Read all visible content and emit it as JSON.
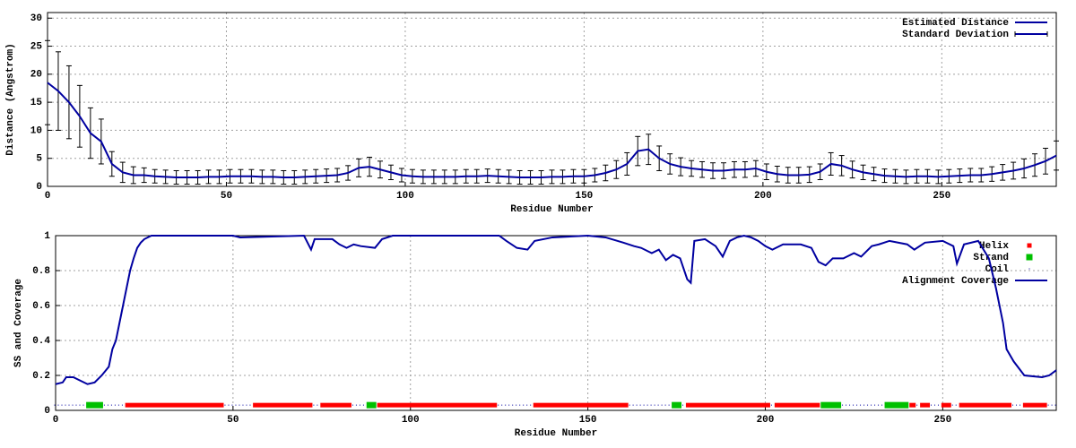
{
  "chart_data": [
    {
      "type": "errorbar-line",
      "xlabel": "Residue Number",
      "ylabel": "Distance (Angstrom)",
      "x": [
        0,
        3,
        6,
        9,
        12,
        15,
        18,
        21,
        24,
        27,
        30,
        33,
        36,
        39,
        42,
        45,
        48,
        51,
        54,
        57,
        60,
        63,
        66,
        69,
        72,
        75,
        78,
        81,
        84,
        87,
        90,
        93,
        96,
        99,
        102,
        105,
        108,
        111,
        114,
        117,
        120,
        123,
        126,
        129,
        132,
        135,
        138,
        141,
        144,
        147,
        150,
        153,
        156,
        159,
        162,
        165,
        168,
        171,
        174,
        177,
        180,
        183,
        186,
        189,
        192,
        195,
        198,
        201,
        204,
        207,
        210,
        213,
        216,
        219,
        222,
        225,
        228,
        231,
        234,
        237,
        240,
        243,
        246,
        249,
        252,
        255,
        258,
        261,
        264,
        267,
        270,
        273,
        276,
        279,
        282
      ],
      "series": [
        {
          "name": "Estimated Distance",
          "color": "#0000a0",
          "values": [
            18.5,
            17,
            15,
            12.5,
            9.5,
            8,
            4,
            2.5,
            2,
            2,
            1.8,
            1.7,
            1.6,
            1.6,
            1.6,
            1.7,
            1.7,
            1.8,
            1.8,
            1.8,
            1.7,
            1.7,
            1.6,
            1.6,
            1.7,
            1.8,
            1.9,
            2,
            2.4,
            3.3,
            3.5,
            3,
            2.5,
            2,
            1.8,
            1.7,
            1.7,
            1.7,
            1.7,
            1.8,
            1.8,
            1.9,
            1.8,
            1.7,
            1.6,
            1.6,
            1.6,
            1.7,
            1.7,
            1.8,
            1.8,
            2,
            2.4,
            3,
            4,
            6.3,
            6.6,
            5,
            4,
            3.5,
            3.2,
            3,
            2.8,
            2.8,
            3,
            3,
            3.2,
            2.6,
            2.2,
            2,
            2,
            2.1,
            2.6,
            4,
            3.7,
            3,
            2.5,
            2.2,
            1.9,
            1.8,
            1.7,
            1.8,
            1.8,
            1.7,
            1.8,
            1.9,
            2,
            2,
            2.2,
            2.5,
            2.8,
            3.2,
            3.8,
            4.5,
            5.5
          ]
        },
        {
          "name": "Standard Deviation",
          "color": "#000000",
          "values": [
            7.5,
            7,
            6.5,
            5.5,
            4.5,
            4,
            2.2,
            1.8,
            1.5,
            1.3,
            1.2,
            1.2,
            1.2,
            1.2,
            1.2,
            1.2,
            1.2,
            1.2,
            1.2,
            1.2,
            1.2,
            1.2,
            1.2,
            1.2,
            1.2,
            1.2,
            1.2,
            1.2,
            1.3,
            1.6,
            1.7,
            1.5,
            1.3,
            1.2,
            1.2,
            1.2,
            1.2,
            1.2,
            1.2,
            1.2,
            1.2,
            1.2,
            1.2,
            1.2,
            1.2,
            1.2,
            1.2,
            1.2,
            1.2,
            1.2,
            1.2,
            1.2,
            1.4,
            1.6,
            2,
            2.6,
            2.7,
            2.2,
            1.8,
            1.6,
            1.4,
            1.4,
            1.4,
            1.4,
            1.4,
            1.4,
            1.4,
            1.4,
            1.4,
            1.4,
            1.4,
            1.4,
            1.4,
            2,
            1.8,
            1.5,
            1.3,
            1.2,
            1.2,
            1.2,
            1.2,
            1.2,
            1.2,
            1.2,
            1.2,
            1.2,
            1.2,
            1.2,
            1.3,
            1.4,
            1.5,
            1.7,
            2,
            2.3,
            2.6
          ]
        }
      ],
      "xlim": [
        0,
        282
      ],
      "ylim": [
        0,
        31
      ],
      "xticks": [
        0,
        50,
        100,
        150,
        200,
        250
      ],
      "yticks": [
        0,
        5,
        10,
        15,
        20,
        25,
        30
      ],
      "grid": true,
      "legend": "upper right"
    },
    {
      "type": "coverage",
      "xlabel": "Residue Number",
      "ylabel": "SS and Coverage",
      "series": [
        {
          "name": "Helix",
          "color": "#ff0000",
          "y": 0.03,
          "segments": [
            [
              20,
              47
            ],
            [
              56,
              72
            ],
            [
              75,
              83
            ],
            [
              91,
              124
            ],
            [
              135,
              161
            ],
            [
              178,
              201
            ],
            [
              203,
              215
            ],
            [
              241,
              242
            ],
            [
              244,
              246
            ],
            [
              250,
              252
            ],
            [
              255,
              269
            ],
            [
              273,
              279
            ]
          ]
        },
        {
          "name": "Strand",
          "color": "#00c000",
          "y": 0.03,
          "segments": [
            [
              9,
              13
            ],
            [
              88,
              90
            ],
            [
              174,
              176
            ],
            [
              216,
              221
            ],
            [
              234,
              240
            ]
          ]
        },
        {
          "name": "Coil",
          "color": "#0000a0",
          "y": 0.03,
          "segments": [
            [
              0,
              8
            ],
            [
              14,
              19
            ],
            [
              48,
              55
            ],
            [
              73,
              74
            ],
            [
              84,
              87
            ],
            [
              125,
              134
            ],
            [
              162,
              173
            ],
            [
              177,
              177
            ],
            [
              202,
              202
            ],
            [
              222,
              233
            ],
            [
              243,
              243
            ],
            [
              247,
              249
            ],
            [
              253,
              254
            ],
            [
              270,
              272
            ],
            [
              280,
              282
            ]
          ]
        },
        {
          "name": "Alignment Coverage",
          "color": "#0000a0",
          "x": [
            0,
            2,
            3,
            5,
            7,
            9,
            11,
            13,
            15,
            16,
            17,
            18,
            19,
            20,
            21,
            22,
            23,
            24,
            25,
            27,
            50,
            52,
            70,
            72,
            73,
            78,
            80,
            82,
            84,
            86,
            90,
            92,
            95,
            125,
            127,
            130,
            133,
            135,
            140,
            150,
            155,
            160,
            163,
            165,
            168,
            170,
            172,
            174,
            176,
            178,
            179,
            180,
            183,
            186,
            188,
            190,
            192,
            194,
            196,
            198,
            200,
            202,
            205,
            210,
            213,
            215,
            217,
            219,
            222,
            225,
            227,
            230,
            232,
            235,
            240,
            242,
            245,
            250,
            253,
            254,
            256,
            260,
            263,
            265,
            267,
            268,
            270,
            273,
            278,
            280,
            282
          ],
          "values": [
            0.15,
            0.16,
            0.19,
            0.19,
            0.17,
            0.15,
            0.16,
            0.2,
            0.25,
            0.35,
            0.4,
            0.5,
            0.6,
            0.7,
            0.8,
            0.87,
            0.93,
            0.96,
            0.98,
            1,
            1,
            0.99,
            1,
            0.92,
            0.98,
            0.98,
            0.95,
            0.93,
            0.95,
            0.94,
            0.93,
            0.98,
            1,
            1,
            0.97,
            0.93,
            0.92,
            0.97,
            0.99,
            1,
            0.99,
            0.96,
            0.94,
            0.93,
            0.9,
            0.92,
            0.86,
            0.89,
            0.87,
            0.75,
            0.73,
            0.97,
            0.98,
            0.94,
            0.88,
            0.97,
            0.99,
            1,
            0.99,
            0.97,
            0.94,
            0.92,
            0.95,
            0.95,
            0.93,
            0.85,
            0.83,
            0.87,
            0.87,
            0.9,
            0.88,
            0.94,
            0.95,
            0.97,
            0.95,
            0.92,
            0.96,
            0.97,
            0.94,
            0.84,
            0.95,
            0.97,
            0.87,
            0.7,
            0.5,
            0.35,
            0.28,
            0.2,
            0.19,
            0.2,
            0.23
          ]
        }
      ],
      "xlim": [
        0,
        282
      ],
      "ylim": [
        0,
        1
      ],
      "xticks": [
        0,
        50,
        100,
        150,
        200,
        250
      ],
      "yticks": [
        0,
        0.2,
        0.4,
        0.6,
        0.8,
        1
      ],
      "grid": true,
      "legend": "upper right"
    }
  ]
}
